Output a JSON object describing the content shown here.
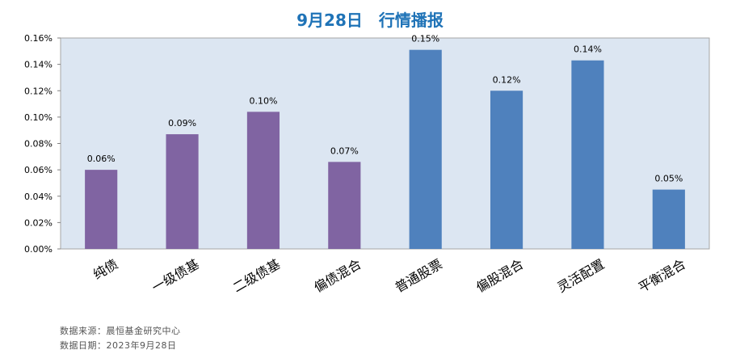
{
  "colors": {
    "title": "#1f73b7",
    "plot_bg": "#dce6f2",
    "bond": "#8064a2",
    "equity": "#4f81bd"
  },
  "chart_data": {
    "type": "bar",
    "title": "9月28日　行情播报",
    "categories": [
      "纯债",
      "一级债基",
      "二级债基",
      "偏债混合",
      "普通股票",
      "偏股混合",
      "灵活配置",
      "平衡混合"
    ],
    "values": [
      0.0006,
      0.00087,
      0.00104,
      0.00066,
      0.00151,
      0.0012,
      0.00143,
      0.00045
    ],
    "data_labels": [
      "0.06%",
      "0.09%",
      "0.10%",
      "0.07%",
      "0.15%",
      "0.12%",
      "0.14%",
      "0.05%"
    ],
    "bar_color_groups": [
      "bond",
      "bond",
      "bond",
      "bond",
      "equity",
      "equity",
      "equity",
      "equity"
    ],
    "ylim": [
      0,
      0.0016
    ],
    "yticks": [
      "0.00%",
      "0.02%",
      "0.04%",
      "0.06%",
      "0.08%",
      "0.10%",
      "0.12%",
      "0.14%",
      "0.16%"
    ],
    "grid": false,
    "legend": "none"
  },
  "footer": {
    "source": "数据来源：晨恒基金研究中心",
    "date": "数据日期：2023年9月28日"
  }
}
